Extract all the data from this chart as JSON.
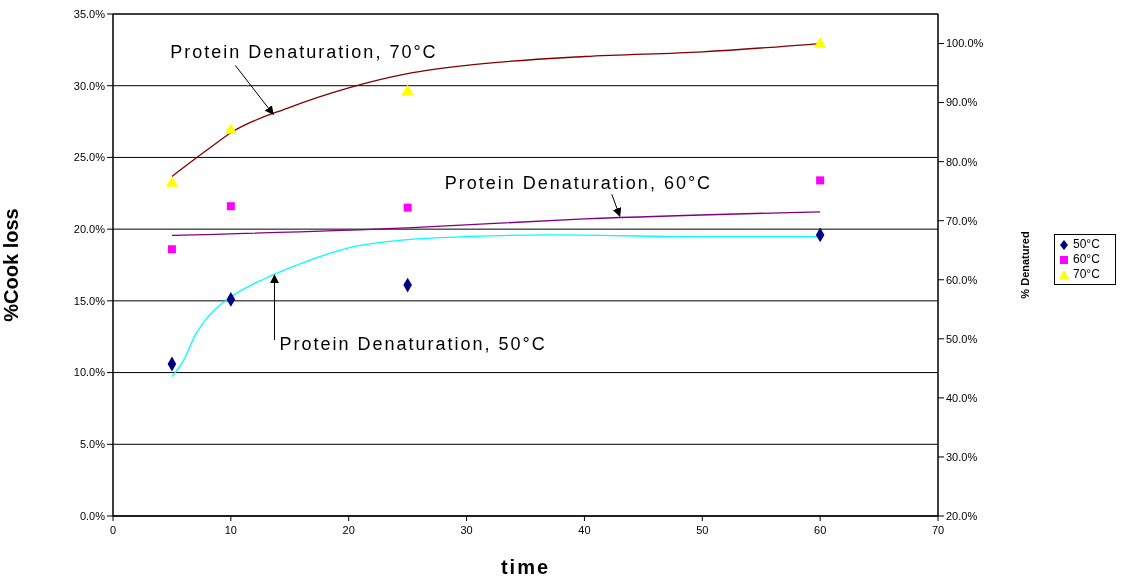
{
  "chart_data": {
    "type": "scatter",
    "xlabel": "time",
    "ylabel": "%Cook loss",
    "y2label": "% Denatured",
    "xlim": [
      0,
      70
    ],
    "xticks": [
      0,
      10,
      20,
      30,
      40,
      50,
      60,
      70
    ],
    "ylim": [
      0,
      35
    ],
    "yticks": [
      {
        "value": 0,
        "label": "0.0%"
      },
      {
        "value": 5,
        "label": "5.0%"
      },
      {
        "value": 10,
        "label": "10.0%"
      },
      {
        "value": 15,
        "label": "15.0%"
      },
      {
        "value": 20,
        "label": "20.0%"
      },
      {
        "value": 25,
        "label": "25.0%"
      },
      {
        "value": 30,
        "label": "30.0%"
      },
      {
        "value": 35,
        "label": "35.0%"
      }
    ],
    "y2lim": [
      20,
      105
    ],
    "y2ticks": [
      {
        "value": 20,
        "label": "20.0%"
      },
      {
        "value": 30,
        "label": "30.0%"
      },
      {
        "value": 40,
        "label": "40.0%"
      },
      {
        "value": 50,
        "label": "50.0%"
      },
      {
        "value": 60,
        "label": "60.0%"
      },
      {
        "value": 70,
        "label": "70.0%"
      },
      {
        "value": 80,
        "label": "80.0%"
      },
      {
        "value": 90,
        "label": "90.0%"
      },
      {
        "value": 100,
        "label": "100.0%"
      }
    ],
    "grid": "y",
    "legend": "right",
    "series": [
      {
        "name": "50°C",
        "color": "#000080",
        "marker": "diamond",
        "x": [
          5,
          10,
          25,
          60
        ],
        "values": [
          10.6,
          15.1,
          16.1,
          19.6
        ]
      },
      {
        "name": "60°C",
        "color": "#ff00ff",
        "marker": "square",
        "x": [
          5,
          10,
          25,
          60
        ],
        "values": [
          18.6,
          21.6,
          21.5,
          23.4
        ]
      },
      {
        "name": "70°C",
        "color": "#ffff00",
        "marker": "triangle",
        "x": [
          5,
          10,
          25,
          60
        ],
        "values": [
          23.2,
          26.9,
          29.6,
          32.9
        ]
      },
      {
        "type": "line",
        "axis": "y2",
        "color": "#800000",
        "x": [
          5,
          8,
          10,
          15,
          20,
          25,
          30,
          40,
          50,
          60
        ],
        "values": [
          77.5,
          82.0,
          84.9,
          89.2,
          92.5,
          94.9,
          96.3,
          97.8,
          98.6,
          100
        ]
      },
      {
        "type": "line",
        "axis": "y2",
        "color": "#800080",
        "x": [
          5,
          25,
          40,
          60
        ],
        "values": [
          67.5,
          68.8,
          70.3,
          71.5
        ]
      },
      {
        "type": "line",
        "axis": "y2",
        "color": "#00ffff",
        "x": [
          5,
          6,
          7,
          8,
          10,
          13,
          15,
          20,
          25,
          30,
          37,
          50,
          60
        ],
        "values": [
          43.6,
          46.4,
          50.7,
          53.6,
          57.1,
          60.3,
          62.0,
          65.4,
          66.8,
          67.3,
          67.6,
          67.3,
          67.3
        ]
      }
    ],
    "annotations": [
      {
        "text": "Protein Denaturation, 70°C",
        "x": 13.6,
        "y": 28.0
      },
      {
        "text": "Protein Denaturation, 60°C",
        "x": 43.0,
        "y": 20.9
      },
      {
        "text": "Protein Denaturation, 50°C",
        "x": 13.7,
        "y": 16.8
      }
    ]
  }
}
